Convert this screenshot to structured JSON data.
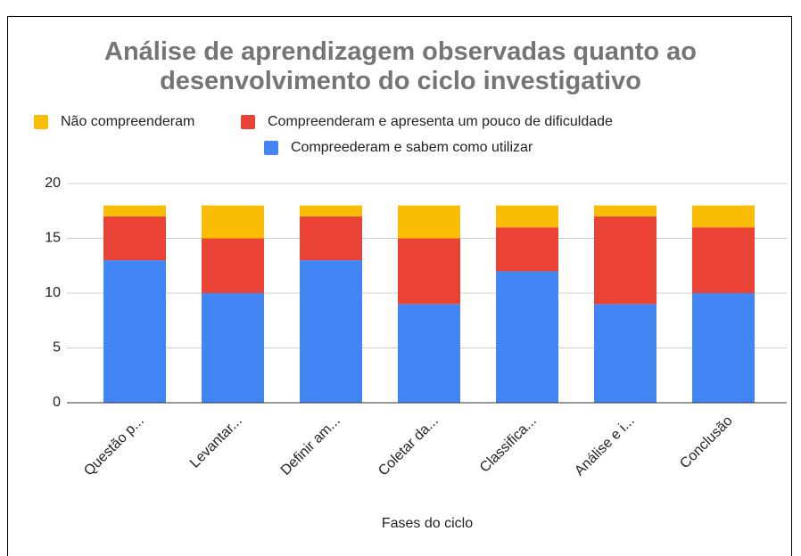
{
  "chart_data": {
    "type": "stacked_bar",
    "title": "Análise de aprendizagem observadas quanto ao desenvolvimento do ciclo investigativo",
    "x_label": "Fases do ciclo",
    "categories": [
      "Questão p...",
      "Levantar...",
      "Definir am...",
      "Coletar da...",
      "Classifica...",
      "Análise e i...",
      "Conclusão"
    ],
    "series": [
      {
        "name": "Não compreenderam",
        "color": "#fbbc04",
        "values": [
          1,
          3,
          1,
          3,
          2,
          1,
          2
        ]
      },
      {
        "name": "Compreenderam e apresenta um pouco de dificuldade",
        "color": "#ea4335",
        "values": [
          4,
          5,
          4,
          6,
          4,
          8,
          6
        ]
      },
      {
        "name": "Compreederam e sabem como utilizar",
        "color": "#4285f4",
        "values": [
          13,
          10,
          13,
          9,
          12,
          9,
          10
        ]
      }
    ],
    "ylim": [
      0,
      20
    ],
    "yticks": [
      0,
      5,
      10,
      15,
      20
    ],
    "grid": true,
    "legend": "top"
  }
}
